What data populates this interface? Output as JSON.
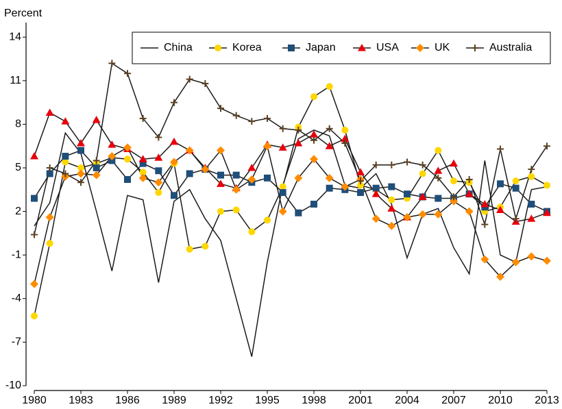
{
  "chart_data": {
    "type": "line",
    "y_label": "Percent",
    "x": [
      1980,
      1981,
      1982,
      1983,
      1984,
      1985,
      1986,
      1987,
      1988,
      1989,
      1990,
      1991,
      1992,
      1993,
      1994,
      1995,
      1996,
      1997,
      1998,
      1999,
      2000,
      2001,
      2002,
      2003,
      2004,
      2005,
      2006,
      2007,
      2008,
      2009,
      2010,
      2011,
      2012,
      2013
    ],
    "xlim": [
      1980,
      2013
    ],
    "xticks": [
      1980,
      1983,
      1986,
      1989,
      1992,
      1995,
      1998,
      2001,
      2004,
      2007,
      2010,
      2013
    ],
    "ylim": [
      -10,
      15
    ],
    "yticks": [
      -10,
      -7,
      -4,
      -1,
      2,
      5,
      8,
      11,
      14
    ],
    "grid": false,
    "legend": "top-right",
    "line_color": "#1a1a1a",
    "series": [
      {
        "name": "China",
        "color": "#000000",
        "marker": "none",
        "values": [
          1.0,
          2.6,
          7.4,
          6.0,
          2.0,
          -2.1,
          3.1,
          2.8,
          -2.9,
          2.7,
          3.5,
          1.5,
          0.0,
          -4.0,
          -8.0,
          -1.5,
          3.8,
          7.0,
          7.6,
          7.2,
          3.8,
          3.6,
          4.6,
          2.5,
          -1.2,
          1.8,
          2.2,
          -0.5,
          -2.3,
          5.5,
          -1.0,
          -1.5,
          3.5,
          3.7
        ]
      },
      {
        "name": "Korea",
        "color": "#ffd700",
        "marker": "circle",
        "values": [
          -5.2,
          -0.2,
          5.4,
          5.0,
          5.3,
          5.7,
          5.6,
          4.7,
          3.3,
          5.3,
          -0.6,
          -0.4,
          2.0,
          2.1,
          0.6,
          1.4,
          3.7,
          7.8,
          9.9,
          10.6,
          7.6,
          3.8,
          3.5,
          2.8,
          2.9,
          4.6,
          6.2,
          4.1,
          4.0,
          2.0,
          2.3,
          4.1,
          4.4,
          3.8
        ]
      },
      {
        "name": "Japan",
        "color": "#1f4e79",
        "marker": "square",
        "values": [
          2.9,
          4.6,
          5.8,
          6.2,
          5.0,
          5.5,
          4.2,
          5.3,
          4.8,
          3.1,
          4.6,
          4.9,
          4.5,
          4.5,
          4.0,
          4.3,
          3.3,
          1.9,
          2.5,
          3.6,
          3.5,
          3.3,
          3.6,
          3.7,
          3.2,
          3.0,
          2.9,
          2.9,
          3.2,
          2.3,
          3.9,
          3.6,
          2.5,
          2.0
        ]
      },
      {
        "name": "USA",
        "color": "#e8000b",
        "marker": "triangle",
        "values": [
          5.8,
          8.8,
          8.2,
          6.7,
          8.3,
          6.6,
          6.3,
          5.6,
          5.7,
          6.8,
          6.2,
          5.0,
          3.9,
          3.6,
          5.0,
          6.6,
          6.4,
          6.7,
          7.3,
          6.5,
          7.0,
          4.7,
          3.2,
          2.2,
          1.6,
          3.0,
          4.8,
          5.3,
          3.2,
          2.5,
          2.1,
          1.3,
          1.5,
          1.9
        ]
      },
      {
        "name": "UK",
        "color": "#ff8c00",
        "marker": "diamond",
        "values": [
          -3.0,
          1.6,
          4.4,
          4.6,
          4.5,
          5.8,
          6.4,
          4.3,
          4.0,
          5.4,
          6.2,
          4.9,
          6.2,
          3.5,
          4.2,
          6.5,
          2.0,
          4.3,
          5.6,
          4.3,
          3.7,
          4.2,
          1.5,
          1.0,
          1.6,
          1.8,
          1.8,
          2.7,
          2.0,
          -1.3,
          -2.5,
          -1.5,
          -1.1,
          -1.4
        ]
      },
      {
        "name": "Australia",
        "color": "#5c4020",
        "marker": "plus",
        "values": [
          0.4,
          5.0,
          4.6,
          4.0,
          5.5,
          12.2,
          11.5,
          8.4,
          7.1,
          9.5,
          11.1,
          10.8,
          9.1,
          8.6,
          8.2,
          8.4,
          7.7,
          7.6,
          6.9,
          7.7,
          6.7,
          4.1,
          5.2,
          5.2,
          5.4,
          5.2,
          4.3,
          3.0,
          4.2,
          1.1,
          6.3,
          1.5,
          4.9,
          6.5
        ]
      }
    ]
  }
}
